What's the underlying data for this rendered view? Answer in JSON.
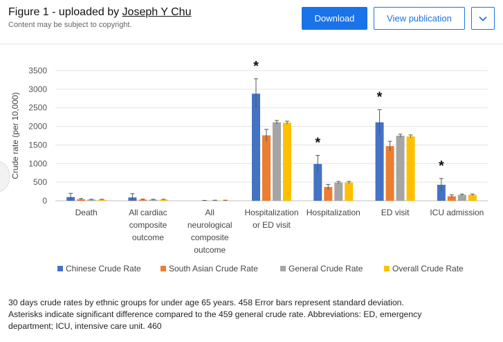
{
  "header": {
    "figure_label": "Figure 1 - uploaded by ",
    "author": "Joseph Y Chu",
    "copyright": "Content may be subject to copyright."
  },
  "toolbar": {
    "download_label": "Download",
    "view_publication_label": "View publication"
  },
  "icons": {
    "more": "chevron-down-icon"
  },
  "colors": {
    "accent": "#1a73e8",
    "chinese": "#4472c4",
    "south_asian": "#ed7d31",
    "general": "#a5a5a5",
    "overall": "#ffc000"
  },
  "chart_data": {
    "type": "bar",
    "ylabel": "Crude rate (per 10,000)",
    "ylim": [
      0,
      3500
    ],
    "yticks": [
      0,
      500,
      1000,
      1500,
      2000,
      2500,
      3000,
      3500
    ],
    "ytick_labels": [
      "0",
      "500",
      "1000",
      "1500",
      "2000",
      "2500",
      "3000",
      "3500"
    ],
    "grid": true,
    "legend_position": "bottom",
    "categories": [
      [
        "Death"
      ],
      [
        "All cardiac",
        "composite",
        "outcome"
      ],
      [
        "All",
        "neurological",
        "composite",
        "outcome"
      ],
      [
        "Hospitalization",
        "or ED visit"
      ],
      [
        "Hospitalization"
      ],
      [
        "ED visit"
      ],
      [
        "ICU admission"
      ]
    ],
    "series": [
      {
        "name": "Chinese Crude Rate",
        "color": "#4472c4",
        "values": [
          100,
          90,
          0,
          2880,
          990,
          2110,
          430
        ],
        "errors": [
          100,
          100,
          0,
          400,
          230,
          340,
          170
        ]
      },
      {
        "name": "South Asian Crude Rate",
        "color": "#ed7d31",
        "values": [
          40,
          30,
          5,
          1760,
          370,
          1470,
          120
        ],
        "errors": [
          20,
          15,
          5,
          160,
          70,
          130,
          40
        ]
      },
      {
        "name": "General Crude Rate",
        "color": "#a5a5a5",
        "values": [
          30,
          30,
          10,
          2110,
          490,
          1750,
          160
        ],
        "errors": [
          10,
          10,
          5,
          50,
          30,
          40,
          20
        ]
      },
      {
        "name": "Overall Crude Rate",
        "color": "#ffc000",
        "values": [
          30,
          30,
          10,
          2100,
          490,
          1730,
          160
        ],
        "errors": [
          10,
          10,
          5,
          40,
          30,
          40,
          20
        ]
      }
    ],
    "significance_marker": "*",
    "significant_categories": [
      3,
      4,
      5,
      6
    ]
  },
  "caption": {
    "lines": [
      "30 days crude rates by ethnic groups for under age 65 years. 458 Error bars represent standard deviation.",
      "Asterisks indicate significant difference compared to the 459 general crude rate. Abbreviations: ED, emergency",
      "department; ICU, intensive care unit. 460"
    ]
  }
}
